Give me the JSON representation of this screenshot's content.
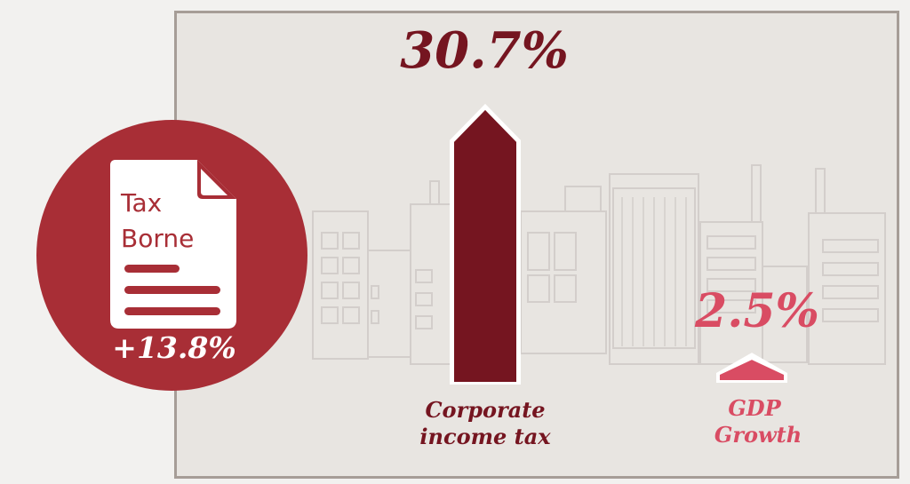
{
  "chart_data": {
    "type": "bar",
    "series": [
      {
        "name": "Corporate income tax",
        "value": 30.7,
        "value_label": "30.7%",
        "color": "#751520"
      },
      {
        "name": "GDP Growth",
        "value": 2.5,
        "value_label": "2.5%",
        "color": "#d94c63"
      }
    ],
    "units": "percent growth"
  },
  "badge": {
    "title_line1": "Tax",
    "title_line2": "Borne",
    "change": "+13.8%",
    "color": "#a82e36",
    "icon": "document-icon"
  },
  "labels": {
    "cit_line1": "Corporate",
    "cit_line2": "income tax",
    "gdp_line1": "GDP",
    "gdp_line2": "Growth"
  }
}
